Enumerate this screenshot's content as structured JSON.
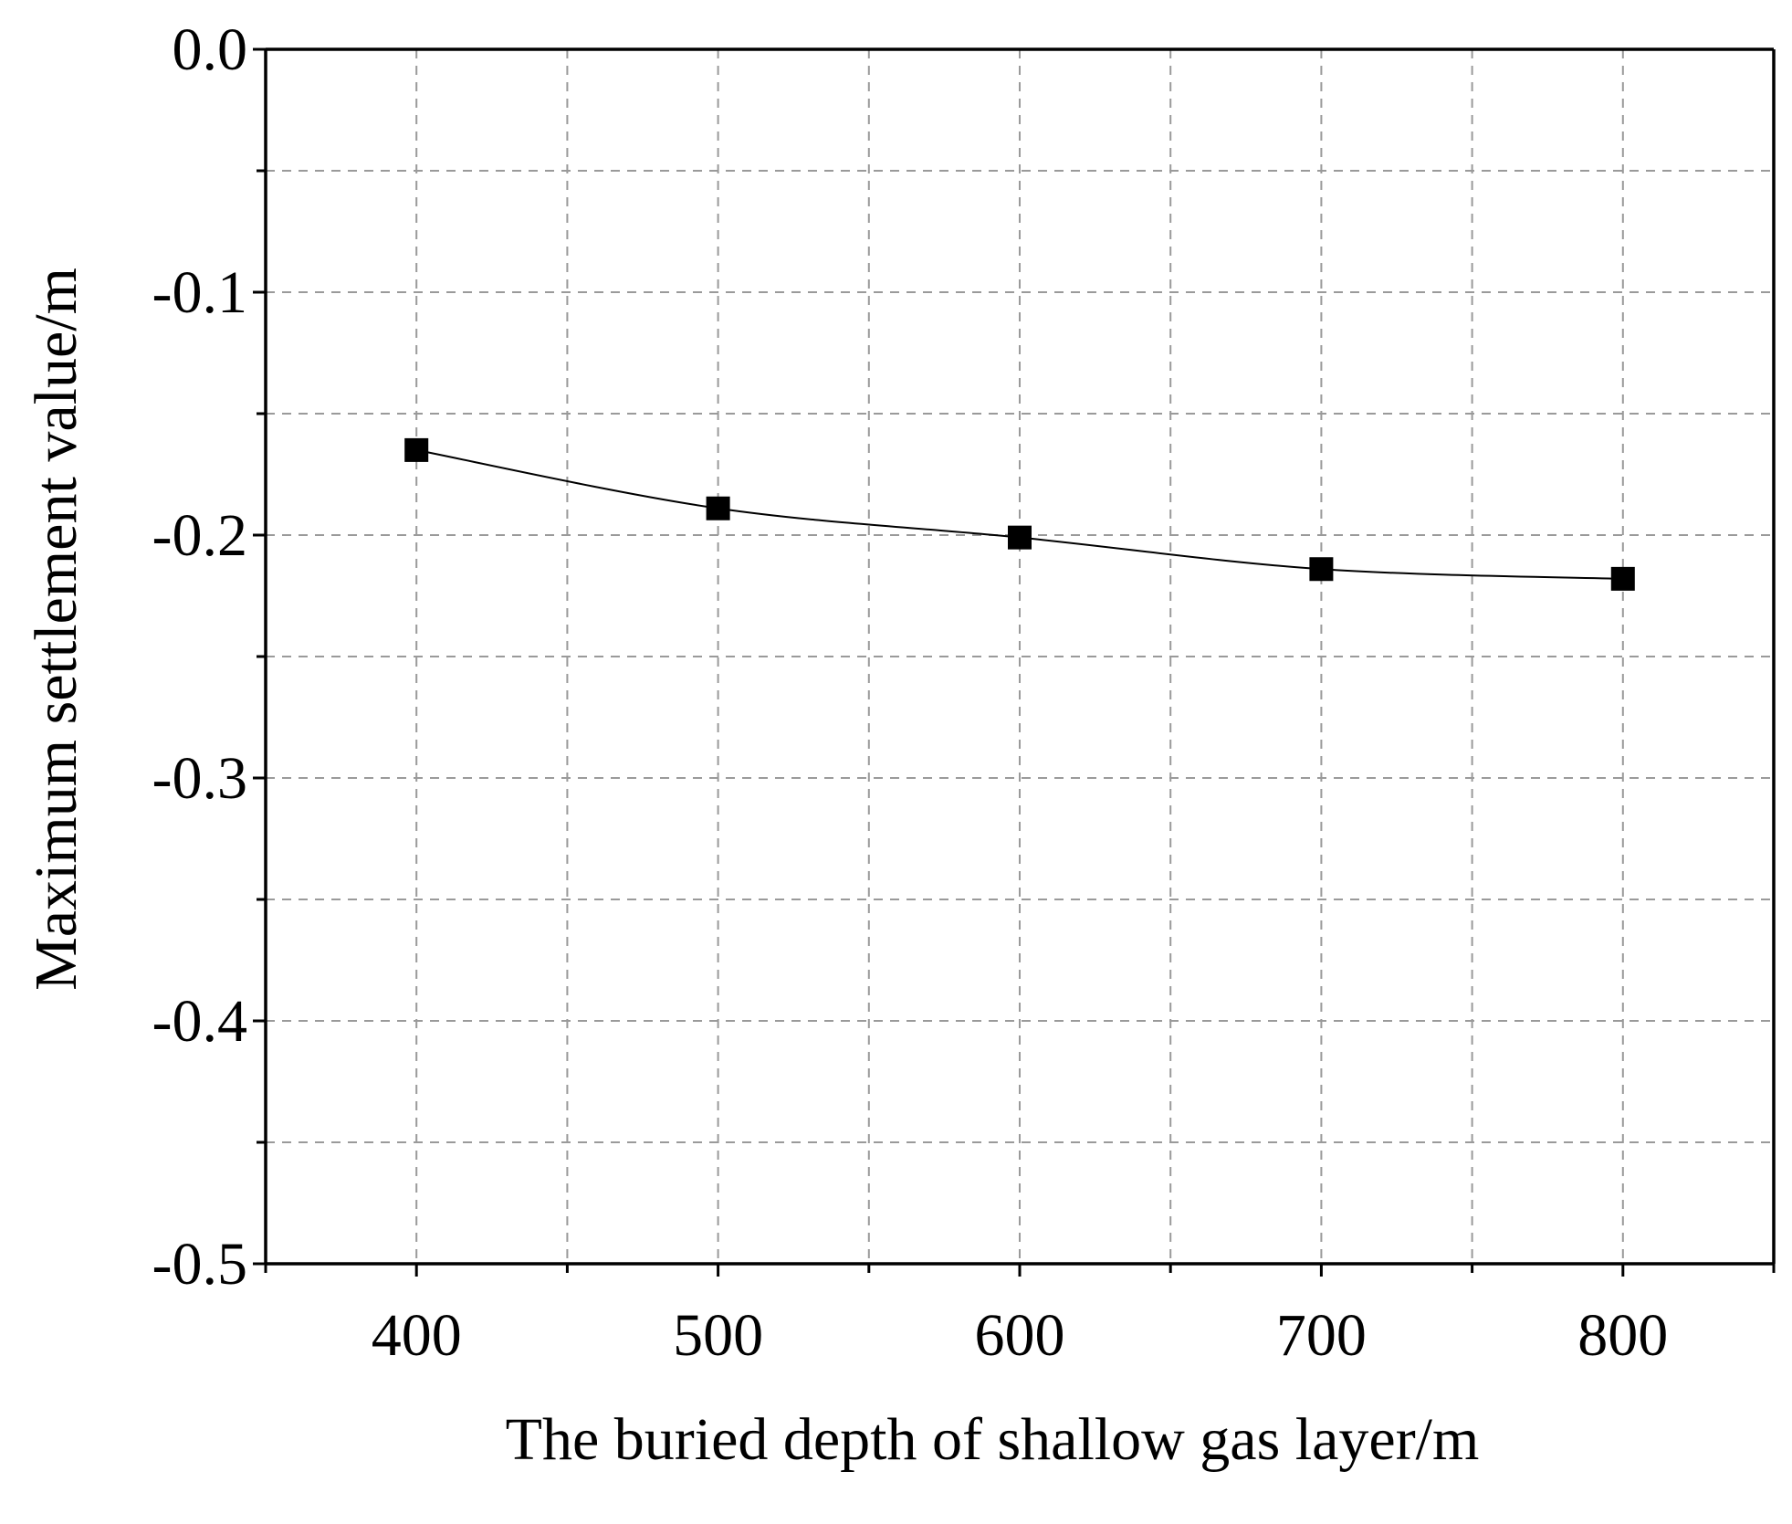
{
  "chart_data": {
    "type": "line",
    "title": "",
    "xlabel": "The buried depth of shallow gas layer/m",
    "ylabel": "Maximum settlement value/m",
    "xlim": [
      350,
      850
    ],
    "ylim": [
      -0.5,
      0.0
    ],
    "x_ticks": [
      400,
      500,
      600,
      700,
      800
    ],
    "x_tick_labels": [
      "400",
      "500",
      "600",
      "700",
      "800"
    ],
    "x_minor_ticks": [
      350,
      450,
      550,
      650,
      750,
      850
    ],
    "y_ticks": [
      0.0,
      -0.1,
      -0.2,
      -0.3,
      -0.4,
      -0.5
    ],
    "y_tick_labels": [
      "0.0",
      "-0.1",
      "-0.2",
      "-0.3",
      "-0.4",
      "-0.5"
    ],
    "y_minor_ticks": [
      -0.05,
      -0.15,
      -0.25,
      -0.35,
      -0.45
    ],
    "grid": true,
    "grid_style": "dashed",
    "legend": "none",
    "series": [
      {
        "marker": "square",
        "color": "#000000",
        "x": [
          400,
          500,
          600,
          700,
          800
        ],
        "y": [
          -0.165,
          -0.189,
          -0.201,
          -0.214,
          -0.218
        ]
      }
    ]
  }
}
